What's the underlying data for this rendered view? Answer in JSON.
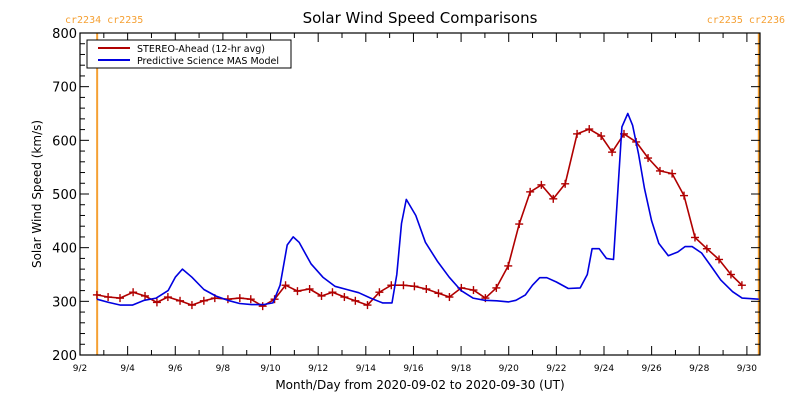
{
  "chart_data": {
    "type": "line",
    "title": "Solar Wind Speed Comparisons",
    "xlabel": "Month/Day from 2020-09-02 to 2020-09-30 (UT)",
    "ylabel": "Solar Wind Speed (km/s)",
    "ylim": [
      200,
      800
    ],
    "xlim_days": [
      2,
      30.55
    ],
    "y_ticks": [
      200,
      300,
      400,
      500,
      600,
      700,
      800
    ],
    "y_tick_labels": [
      "200",
      "300",
      "400",
      "500",
      "600",
      "700",
      "800"
    ],
    "x_ticks_days": [
      2,
      4,
      6,
      8,
      10,
      12,
      14,
      16,
      18,
      20,
      22,
      24,
      26,
      28,
      30
    ],
    "x_tick_labels": [
      "9/2",
      "9/4",
      "9/6",
      "9/8",
      "9/10",
      "9/12",
      "9/14",
      "9/16",
      "9/18",
      "9/20",
      "9/22",
      "9/24",
      "9/26",
      "9/28",
      "9/30"
    ],
    "grid": false,
    "legend": "top-left",
    "carrington_markers": [
      {
        "day": 2.72,
        "label": "cr2234 cr2235",
        "label_position": "left"
      },
      {
        "day": 30.5,
        "label": "cr2235 cr2236",
        "label_position": "right"
      }
    ],
    "marker_color": "#f5a033",
    "series": [
      {
        "name": "STEREO-Ahead (12-hr avg)",
        "color": "#b00000",
        "marker": "+",
        "x_days": [
          2.71,
          3.18,
          3.68,
          4.23,
          4.73,
          5.23,
          5.69,
          6.2,
          6.7,
          7.2,
          7.66,
          8.21,
          8.71,
          9.17,
          9.67,
          10.17,
          10.63,
          11.13,
          11.64,
          12.14,
          12.6,
          13.1,
          13.56,
          14.07,
          14.57,
          15.07,
          15.58,
          16.04,
          16.54,
          17.05,
          17.51,
          18.01,
          18.52,
          19.02,
          19.48,
          19.98,
          20.44,
          20.9,
          21.37,
          21.87,
          22.37,
          22.87,
          23.38,
          23.88,
          24.34,
          24.84,
          25.35,
          25.85,
          26.35,
          26.86,
          27.36,
          27.82,
          28.32,
          28.83,
          29.33,
          29.79
        ],
        "values": [
          312,
          308,
          306,
          317,
          310,
          298,
          308,
          301,
          293,
          301,
          306,
          304,
          306,
          304,
          291,
          304,
          330,
          319,
          323,
          310,
          317,
          308,
          301,
          293,
          317,
          330,
          330,
          328,
          323,
          315,
          308,
          325,
          321,
          306,
          325,
          366,
          444,
          504,
          517,
          491,
          519,
          612,
          621,
          608,
          578,
          612,
          597,
          567,
          543,
          538,
          497,
          419,
          398,
          378,
          350,
          330
        ]
      },
      {
        "name": "Predictive Science MAS Model",
        "color": "#0000e0",
        "x_days": [
          2.71,
          3.2,
          3.7,
          4.2,
          4.7,
          5.2,
          5.7,
          6.0,
          6.3,
          6.7,
          7.2,
          7.7,
          8.2,
          8.7,
          9.2,
          9.7,
          10.1,
          10.4,
          10.7,
          10.95,
          11.2,
          11.7,
          12.2,
          12.7,
          13.2,
          13.7,
          14.2,
          14.7,
          15.1,
          15.3,
          15.5,
          15.7,
          16.1,
          16.5,
          17.0,
          17.5,
          18.0,
          18.5,
          19.0,
          19.5,
          20.0,
          20.3,
          20.7,
          21.0,
          21.3,
          21.6,
          22.0,
          22.5,
          23.0,
          23.3,
          23.5,
          23.8,
          24.1,
          24.4,
          24.75,
          25.0,
          25.2,
          25.45,
          25.7,
          26.0,
          26.3,
          26.7,
          27.1,
          27.4,
          27.7,
          28.1,
          28.5,
          28.9,
          29.4,
          29.8,
          30.5
        ],
        "values": [
          304,
          298,
          293,
          293,
          302,
          306,
          320,
          345,
          360,
          345,
          322,
          310,
          302,
          296,
          294,
          294,
          297,
          330,
          405,
          420,
          410,
          370,
          345,
          328,
          322,
          316,
          306,
          297,
          297,
          350,
          445,
          490,
          460,
          410,
          375,
          345,
          320,
          306,
          302,
          301,
          299,
          302,
          312,
          330,
          344,
          344,
          336,
          324,
          325,
          350,
          398,
          398,
          380,
          378,
          625,
          650,
          628,
          575,
          510,
          450,
          408,
          385,
          392,
          402,
          402,
          390,
          365,
          340,
          318,
          306,
          304
        ]
      }
    ]
  }
}
